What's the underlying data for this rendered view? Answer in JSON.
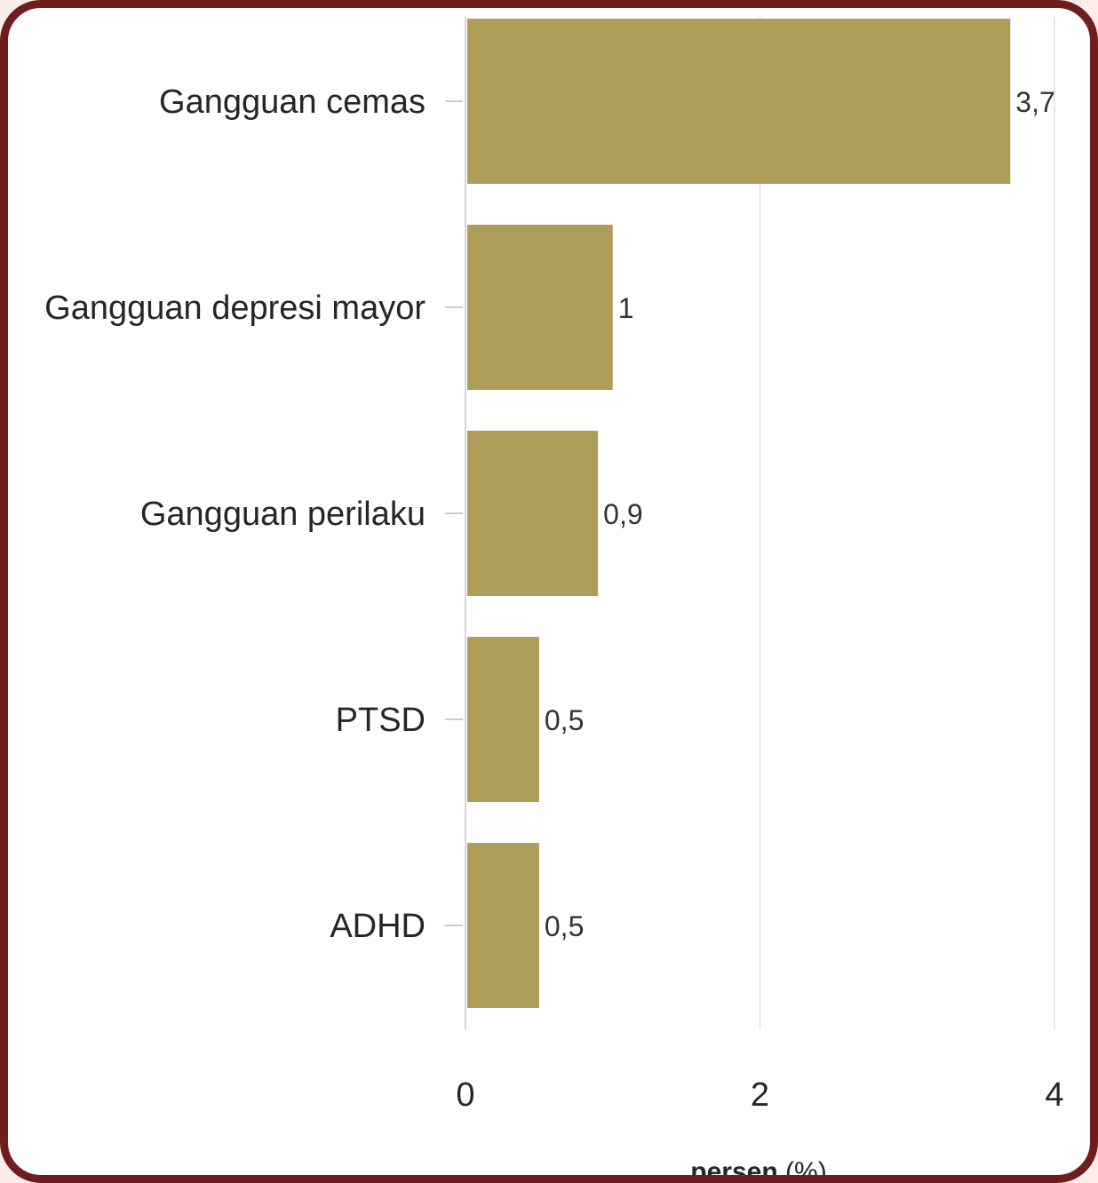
{
  "chart_data": {
    "type": "bar",
    "orientation": "horizontal",
    "categories": [
      "Gangguan cemas",
      "Gangguan depresi mayor",
      "Gangguan perilaku",
      "PTSD",
      "ADHD"
    ],
    "values": [
      3.7,
      1,
      0.9,
      0.5,
      0.5
    ],
    "value_labels": [
      "3,7",
      "1",
      "0,9",
      "0,5",
      "0,5"
    ],
    "xlim": [
      0,
      4
    ],
    "x_ticks": [
      0,
      2,
      4
    ],
    "x_tick_labels": [
      "0",
      "2",
      "4"
    ],
    "xlabel_bold": "persen",
    "xlabel_rest": " (%)",
    "grid": true,
    "legend": "none",
    "colors": {
      "bar": "#ad9f5a",
      "frame": "#6f1e1e",
      "background": "#fbeeea",
      "grid": "#e6e6e6"
    }
  }
}
